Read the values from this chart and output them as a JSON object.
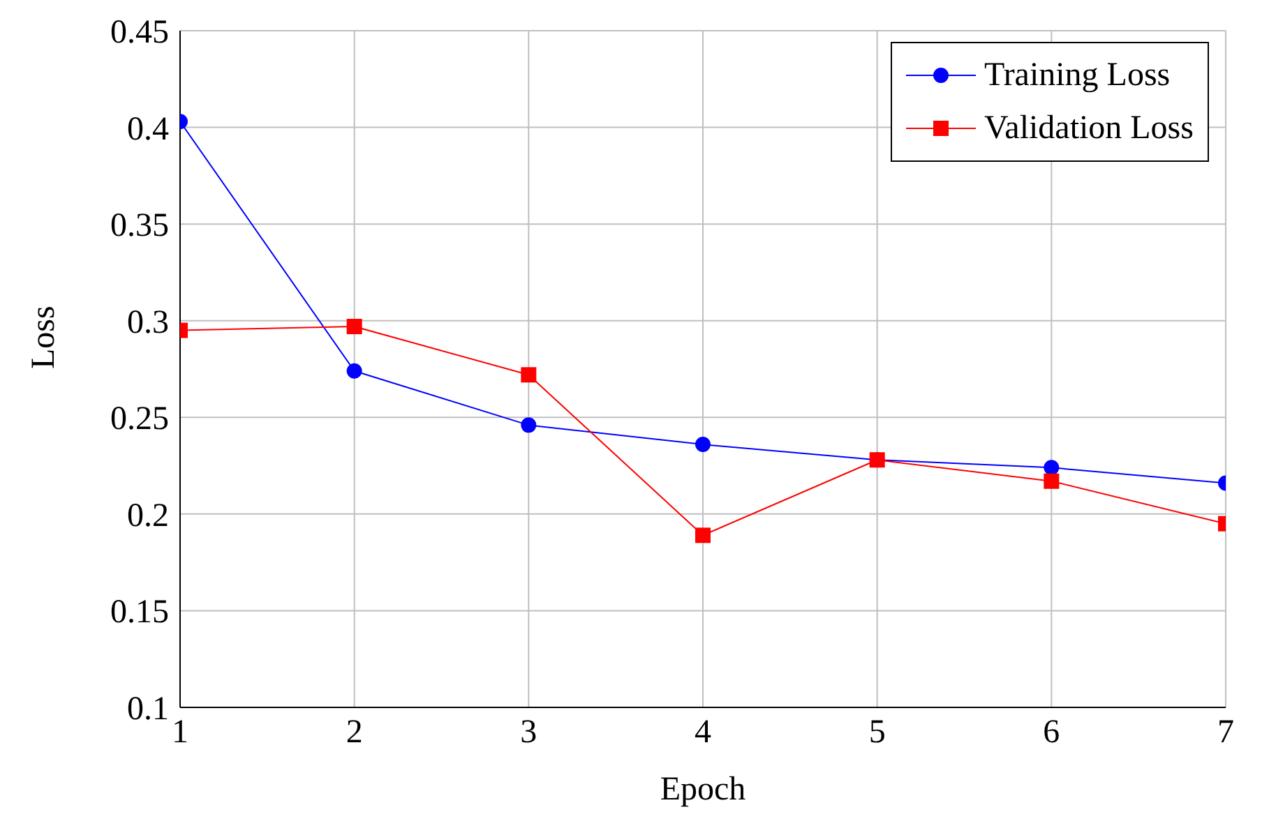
{
  "chart_data": {
    "type": "line",
    "xlabel": "Epoch",
    "ylabel": "Loss",
    "x": [
      1,
      2,
      3,
      4,
      5,
      6,
      7
    ],
    "series": [
      {
        "name": "Training Loss",
        "color": "#0000ff",
        "marker": "circle",
        "values": [
          0.403,
          0.274,
          0.246,
          0.236,
          0.228,
          0.224,
          0.216
        ]
      },
      {
        "name": "Validation Loss",
        "color": "#ff0000",
        "marker": "square",
        "values": [
          0.295,
          0.297,
          0.272,
          0.189,
          0.228,
          0.217,
          0.195
        ]
      }
    ],
    "xlim": [
      1,
      7
    ],
    "xticks": [
      1,
      2,
      3,
      4,
      5,
      6,
      7
    ],
    "ylim": [
      0.1,
      0.45
    ],
    "yticks": [
      0.1,
      0.15,
      0.2,
      0.25,
      0.3,
      0.35,
      0.4,
      0.45
    ],
    "grid": true,
    "legend": "top right",
    "line_style": "solid"
  }
}
